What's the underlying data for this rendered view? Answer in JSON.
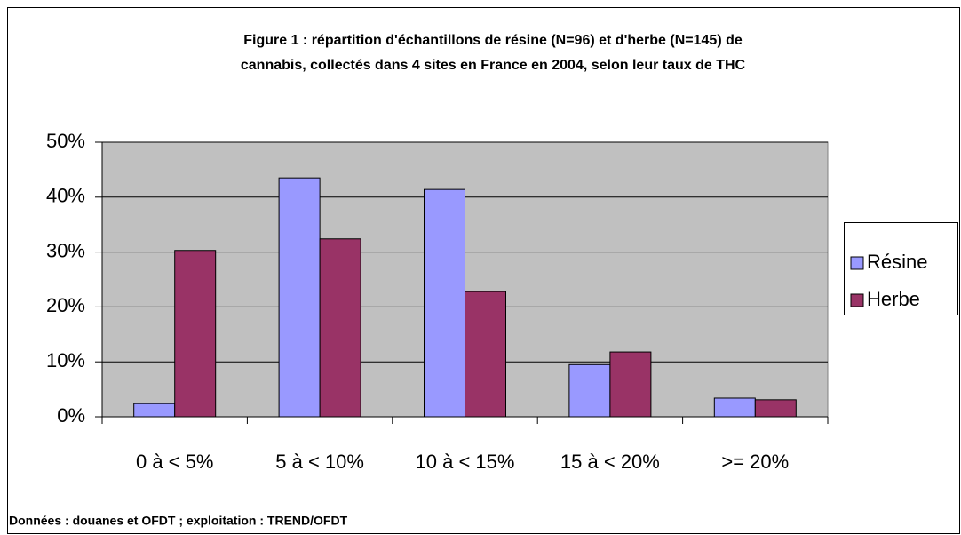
{
  "chart_data": {
    "type": "bar",
    "title": [
      "Figure 1 : répartition d'échantillons de résine (N=96) et d'herbe (N=145) de",
      "cannabis, collectés dans 4 sites en France en 2004, selon leur taux de THC"
    ],
    "categories": [
      "0 à < 5%",
      "5 à < 10%",
      "10 à < 15%",
      "15 à < 20%",
      ">= 20%"
    ],
    "series": [
      {
        "name": "Résine",
        "color": "#9999ff",
        "values": [
          2.4,
          43.5,
          41.4,
          9.5,
          3.4
        ]
      },
      {
        "name": "Herbe",
        "color": "#993366",
        "values": [
          30.3,
          32.4,
          22.8,
          11.8,
          3.1
        ]
      }
    ],
    "ylim": [
      0,
      50
    ],
    "yticks": [
      {
        "value": 0,
        "label": "0%"
      },
      {
        "value": 10,
        "label": "10%"
      },
      {
        "value": 20,
        "label": "20%"
      },
      {
        "value": 30,
        "label": "30%"
      },
      {
        "value": 40,
        "label": "40%"
      },
      {
        "value": 50,
        "label": "50%"
      }
    ],
    "grid": true,
    "legend": "right",
    "source": "Données : douanes et OFDT ; exploitation : TREND/OFDT"
  }
}
